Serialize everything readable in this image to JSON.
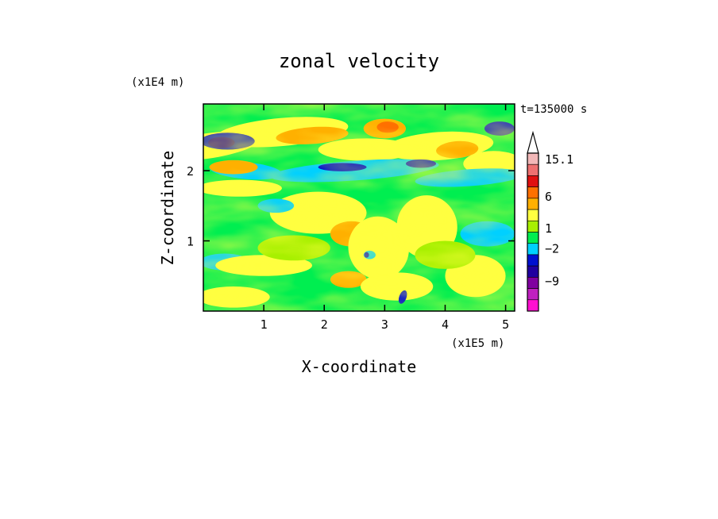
{
  "chart_data": {
    "type": "heatmap",
    "title": "zonal velocity",
    "xlabel": "X-coordinate",
    "ylabel": "Z-coordinate",
    "x_scale_label": "(x1E5 m)",
    "y_scale_label": "(x1E4 m)",
    "time_label": "t=135000 s",
    "xlim": [
      0,
      5.15
    ],
    "ylim": [
      0,
      2.95
    ],
    "x_ticks": [
      "1",
      "2",
      "3",
      "4",
      "5"
    ],
    "y_ticks": [
      "1",
      "2"
    ],
    "colorbar": {
      "labels": [
        "15.1",
        "6",
        "1",
        "−2",
        "−9"
      ],
      "colors": [
        "#f2b8b8",
        "#ee7070",
        "#e01010",
        "#ff7000",
        "#ffb000",
        "#ffff40",
        "#a8f000",
        "#00ee50",
        "#00d0ff",
        "#0010d0",
        "#2000a0",
        "#8000a0",
        "#c020c0",
        "#ff10d0"
      ]
    },
    "grid": false
  }
}
